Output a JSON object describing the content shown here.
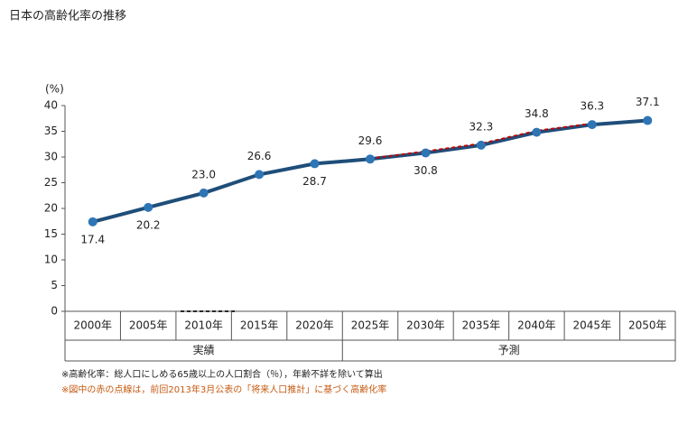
{
  "chart_data": {
    "type": "line",
    "title": "日本の高齢化率の推移",
    "y_label": "(%)",
    "categories": [
      "2000年",
      "2005年",
      "2010年",
      "2015年",
      "2020年",
      "2025年",
      "2030年",
      "2035年",
      "2040年",
      "2045年",
      "2050年"
    ],
    "x_groups": [
      "実績",
      "予測"
    ],
    "series": [
      {
        "color": "#1f4e79",
        "marker_color": "#2e75b6",
        "values": [
          17.4,
          20.2,
          23.0,
          26.6,
          28.7,
          29.6,
          30.8,
          32.3,
          34.8,
          36.3,
          37.1
        ],
        "value_labels": [
          "17.4",
          "20.2",
          "23.0",
          "26.6",
          "28.7",
          "29.6",
          "30.8",
          "32.3",
          "34.8",
          "36.3",
          "37.1"
        ]
      },
      {
        "color": "#c00000",
        "dashed": true,
        "values": [
          null,
          null,
          null,
          null,
          null,
          29.7,
          31.1,
          32.6,
          35.1,
          36.5,
          null
        ]
      }
    ],
    "ylim": [
      0,
      40
    ],
    "yticks": [
      0,
      5,
      10,
      15,
      20,
      25,
      30,
      35,
      40
    ],
    "grid": false,
    "notes": [
      "※高齢化率：総人口にしめる65歳以上の人口割合（％），年齢不詳を除いて算出",
      "※図中の赤の点線は，前回2013年3月公表の「将来人口推計」に基づく高齢化率"
    ]
  }
}
